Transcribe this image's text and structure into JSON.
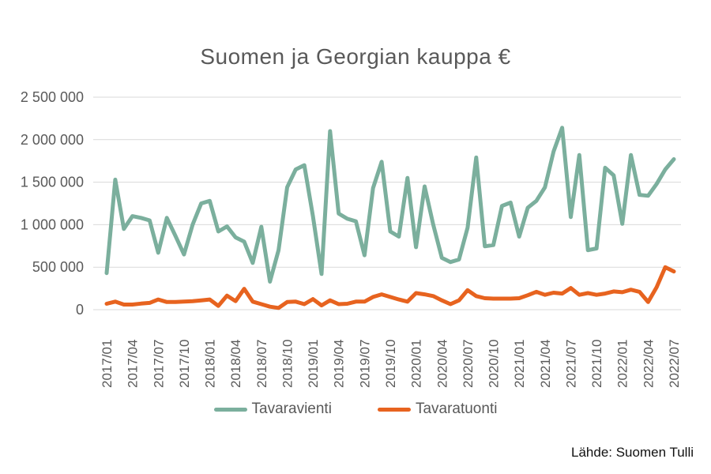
{
  "title": "Suomen ja Georgian kauppa €",
  "footer": "Lähde: Suomen Tulli",
  "legend": [
    {
      "name": "Tavaravienti",
      "color": "#7BAF9D"
    },
    {
      "name": "Tavaratuonti",
      "color": "#E7631F"
    }
  ],
  "colors": {
    "gridline": "#D9D9D9",
    "axis_text": "#595959",
    "title_text": "#595959",
    "export_line": "#7BAF9D",
    "import_line": "#E7631F"
  },
  "chart_data": {
    "type": "line",
    "title": "Suomen ja Georgian kauppa €",
    "xlabel": "",
    "ylabel": "",
    "ylim": [
      0,
      2500000
    ],
    "grid": "horizontal",
    "legend_position": "bottom",
    "x_tick_every": 3,
    "y_ticks": [
      {
        "value": 0,
        "label": "0"
      },
      {
        "value": 500000,
        "label": "500 000"
      },
      {
        "value": 1000000,
        "label": "1 000 000"
      },
      {
        "value": 1500000,
        "label": "1 500 000"
      },
      {
        "value": 2000000,
        "label": "2 000 000"
      },
      {
        "value": 2500000,
        "label": "2 500 000"
      }
    ],
    "x": [
      "2017/01",
      "2017/02",
      "2017/03",
      "2017/04",
      "2017/05",
      "2017/06",
      "2017/07",
      "2017/08",
      "2017/09",
      "2017/10",
      "2017/11",
      "2017/12",
      "2018/01",
      "2018/02",
      "2018/03",
      "2018/04",
      "2018/05",
      "2018/06",
      "2018/07",
      "2018/08",
      "2018/09",
      "2018/10",
      "2018/11",
      "2018/12",
      "2019/01",
      "2019/02",
      "2019/03",
      "2019/04",
      "2019/05",
      "2019/06",
      "2019/07",
      "2019/08",
      "2019/09",
      "2019/10",
      "2019/11",
      "2019/12",
      "2020/01",
      "2020/02",
      "2020/03",
      "2020/04",
      "2020/05",
      "2020/06",
      "2020/07",
      "2020/08",
      "2020/09",
      "2020/10",
      "2020/11",
      "2020/12",
      "2021/01",
      "2021/02",
      "2021/03",
      "2021/04",
      "2021/05",
      "2021/06",
      "2021/07",
      "2021/08",
      "2021/09",
      "2021/10",
      "2021/11",
      "2021/12",
      "2022/01",
      "2022/02",
      "2022/03",
      "2022/04",
      "2022/05",
      "2022/06",
      "2022/07"
    ],
    "series": [
      {
        "name": "Tavaravienti",
        "color": "#7BAF9D",
        "values": [
          430000,
          1530000,
          950000,
          1100000,
          1080000,
          1050000,
          670000,
          1080000,
          870000,
          650000,
          1000000,
          1250000,
          1280000,
          920000,
          980000,
          850000,
          800000,
          550000,
          975000,
          330000,
          700000,
          1440000,
          1650000,
          1700000,
          1100000,
          420000,
          2100000,
          1130000,
          1070000,
          1040000,
          640000,
          1430000,
          1740000,
          920000,
          860000,
          1550000,
          735000,
          1450000,
          1000000,
          610000,
          560000,
          590000,
          965000,
          1790000,
          745000,
          760000,
          1220000,
          1260000,
          860000,
          1200000,
          1280000,
          1440000,
          1860000,
          2140000,
          1090000,
          1820000,
          700000,
          720000,
          1670000,
          1580000,
          1010000,
          1820000,
          1350000,
          1340000,
          1480000,
          1650000,
          1770000
        ]
      },
      {
        "name": "Tavaratuonti",
        "color": "#E7631F",
        "values": [
          70000,
          95000,
          60000,
          60000,
          72000,
          80000,
          120000,
          90000,
          90000,
          95000,
          100000,
          110000,
          120000,
          45000,
          165000,
          100000,
          245000,
          95000,
          65000,
          35000,
          20000,
          90000,
          95000,
          65000,
          125000,
          50000,
          110000,
          65000,
          70000,
          95000,
          95000,
          150000,
          180000,
          150000,
          120000,
          95000,
          195000,
          180000,
          160000,
          110000,
          65000,
          110000,
          230000,
          160000,
          135000,
          130000,
          130000,
          130000,
          135000,
          170000,
          210000,
          175000,
          200000,
          190000,
          255000,
          175000,
          195000,
          175000,
          190000,
          215000,
          205000,
          235000,
          210000,
          90000,
          265000,
          500000,
          450000
        ]
      }
    ]
  }
}
